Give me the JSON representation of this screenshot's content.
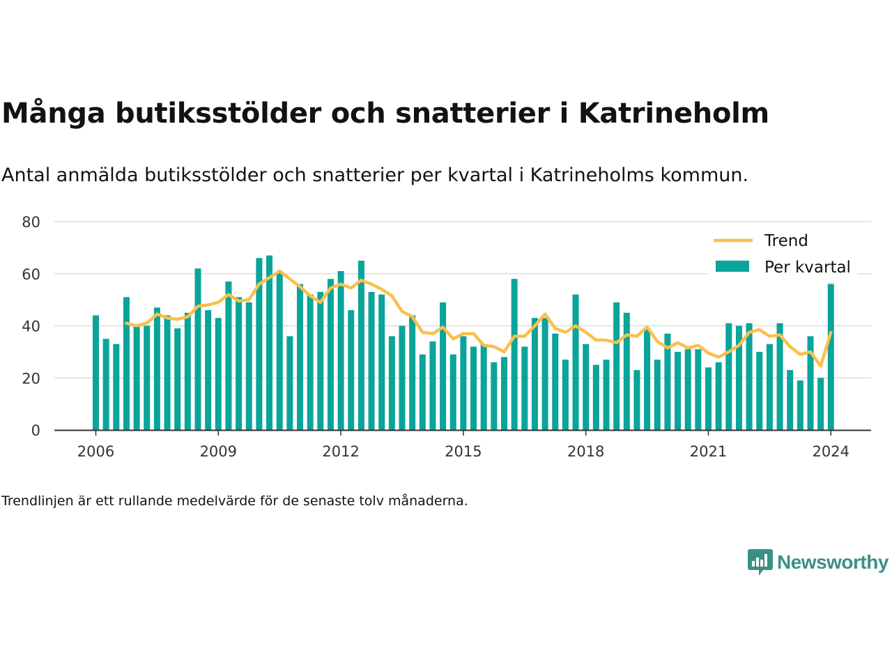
{
  "title": "Många butiksstölder och snatterier i Katrineholm",
  "subtitle": "Antal anmälda butiksstölder och snatterier per kvartal i Katrineholms kommun.",
  "note": "Trendlinjen är ett rullande medelvärde för de senaste tolv månaderna.",
  "brand": {
    "name": "Newsworthy",
    "icon": "bar-chart-logo-icon",
    "color": "#3d8f85"
  },
  "colors": {
    "bars": "#09a49a",
    "bar_highlight": "#c7eae8",
    "trend": "#f9c04c",
    "grid": "#dcdcdc",
    "axis": "#333333",
    "text": "#121212"
  },
  "chart_data": {
    "type": "bar",
    "ylim": [
      0,
      80
    ],
    "yticks": [
      "0",
      "20",
      "40",
      "60",
      "80"
    ],
    "xticks": [
      "2006",
      "2009",
      "2012",
      "2015",
      "2018",
      "2021",
      "2024"
    ],
    "legend_position": "top-right",
    "grid": true,
    "categories": [
      "2006 Q1",
      "2006 Q2",
      "2006 Q3",
      "2006 Q4",
      "2007 Q1",
      "2007 Q2",
      "2007 Q3",
      "2007 Q4",
      "2008 Q1",
      "2008 Q2",
      "2008 Q3",
      "2008 Q4",
      "2009 Q1",
      "2009 Q2",
      "2009 Q3",
      "2009 Q4",
      "2010 Q1",
      "2010 Q2",
      "2010 Q3",
      "2010 Q4",
      "2011 Q1",
      "2011 Q2",
      "2011 Q3",
      "2011 Q4",
      "2012 Q1",
      "2012 Q2",
      "2012 Q3",
      "2012 Q4",
      "2013 Q1",
      "2013 Q2",
      "2013 Q3",
      "2013 Q4",
      "2014 Q1",
      "2014 Q2",
      "2014 Q3",
      "2014 Q4",
      "2015 Q1",
      "2015 Q2",
      "2015 Q3",
      "2015 Q4",
      "2016 Q1",
      "2016 Q2",
      "2016 Q3",
      "2016 Q4",
      "2017 Q1",
      "2017 Q2",
      "2017 Q3",
      "2017 Q4",
      "2018 Q1",
      "2018 Q2",
      "2018 Q3",
      "2018 Q4",
      "2019 Q1",
      "2019 Q2",
      "2019 Q3",
      "2019 Q4",
      "2020 Q1",
      "2020 Q2",
      "2020 Q3",
      "2020 Q4",
      "2021 Q1",
      "2021 Q2",
      "2021 Q3",
      "2021 Q4",
      "2022 Q1",
      "2022 Q2",
      "2022 Q3",
      "2022 Q4",
      "2023 Q1",
      "2023 Q2",
      "2023 Q3",
      "2023 Q4",
      "2024 Q1"
    ],
    "series": [
      {
        "name": "Per kvartal",
        "type": "bar",
        "values": [
          44,
          35,
          33,
          51,
          40,
          40,
          47,
          44,
          39,
          45,
          62,
          46,
          43,
          57,
          51,
          49,
          66,
          67,
          61,
          36,
          56,
          52,
          53,
          58,
          61,
          46,
          65,
          53,
          52,
          36,
          40,
          44,
          29,
          34,
          49,
          29,
          36,
          32,
          33,
          26,
          28,
          58,
          32,
          43,
          43,
          37,
          27,
          52,
          33,
          25,
          27,
          49,
          45,
          23,
          39,
          27,
          37,
          30,
          31,
          31,
          24,
          26,
          41,
          40,
          41,
          30,
          33,
          41,
          23,
          19,
          36,
          20,
          56
        ],
        "highlight_last": 72
      },
      {
        "name": "Trend",
        "type": "line",
        "values": [
          null,
          null,
          null,
          41,
          40,
          41,
          44.5,
          43,
          42.5,
          43.5,
          47.5,
          48,
          49,
          52,
          49.5,
          50,
          56,
          58.5,
          61,
          58,
          55,
          51.5,
          49,
          54.5,
          56,
          54.5,
          57.5,
          56,
          54,
          51.5,
          45.5,
          43.5,
          37.5,
          37,
          39.5,
          35,
          37,
          37,
          32.5,
          32,
          30,
          36,
          36,
          40,
          44.5,
          39,
          37.5,
          40,
          37.5,
          34.5,
          34.5,
          33.5,
          36.5,
          36,
          39.5,
          34,
          31.5,
          33.5,
          31.5,
          32.5,
          29.5,
          28,
          30,
          32.5,
          37.5,
          38.5,
          36,
          36.5,
          32,
          29,
          30,
          24.5,
          37.5
        ]
      }
    ]
  }
}
